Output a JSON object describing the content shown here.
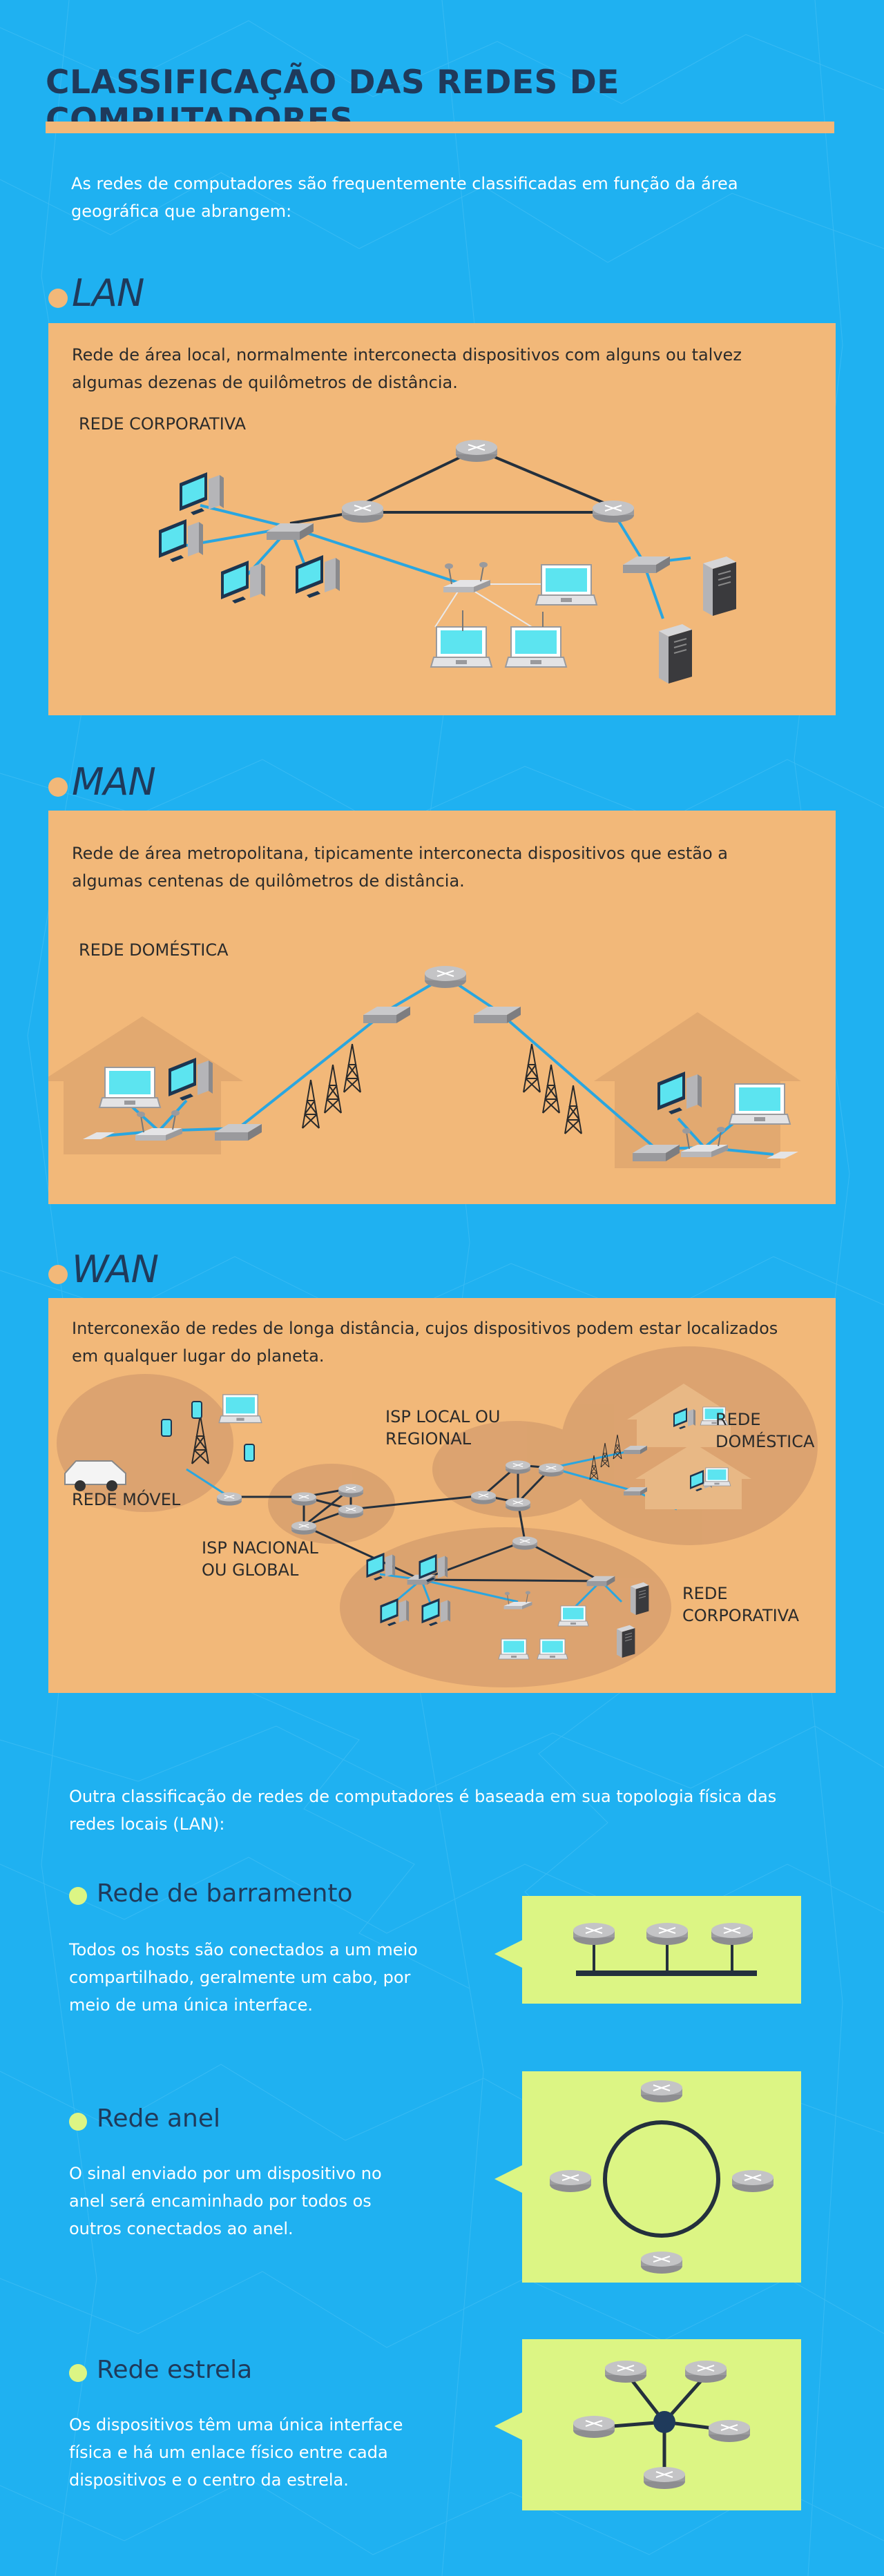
{
  "header": {
    "title": "CLASSIFICAÇÃO DAS REDES DE COMPUTADORES",
    "intro_line1": "As redes de computadores são frequentemente classificadas em função da área",
    "intro_line2": "geográfica que abrangem:"
  },
  "sections": {
    "lan": {
      "heading": "LAN",
      "text_line1": "Rede de área local, normalmente interconecta dispositivos com alguns ou talvez",
      "text_line2": "algumas dezenas de quilômetros de distância.",
      "diagram_label": "REDE CORPORATIVA"
    },
    "man": {
      "heading": "MAN",
      "text_line1": "Rede de área metropolitana, tipicamente interconecta dispositivos que estão a",
      "text_line2": "algumas centenas de quilômetros de distância.",
      "diagram_label": "REDE DOMÉSTICA"
    },
    "wan": {
      "heading": "WAN",
      "text_line1": "Interconexão de redes de longa distância, cujos dispositivos podem estar localizados",
      "text_line2": "em qualquer lugar do planeta.",
      "label_mobile": "REDE MÓVEL",
      "label_isp_national_1": "ISP NACIONAL",
      "label_isp_national_2": "OU GLOBAL",
      "label_isp_local_1": "ISP LOCAL OU",
      "label_isp_local_2": "REGIONAL",
      "label_home_1": "REDE",
      "label_home_2": "DOMÉSTICA",
      "label_corp_1": "REDE",
      "label_corp_2": "CORPORATIVA"
    }
  },
  "topology": {
    "intro_line1": "Outra classificação de redes de computadores é baseada em sua topologia física das",
    "intro_line2": "redes locais (LAN):",
    "bus": {
      "heading": "Rede de barramento",
      "line1": "Todos os hosts são conectados a um meio",
      "line2": "compartilhado, geralmente um cabo, por",
      "line3": "meio de uma única interface."
    },
    "ring": {
      "heading": "Rede anel",
      "line1": "O sinal enviado por um dispositivo no",
      "line2": "anel será encaminhado por todos os",
      "line3": "outros conectados ao anel."
    },
    "star": {
      "heading": "Rede estrela",
      "line1": "Os dispositivos têm uma única interface",
      "line2": "física e há um enlace físico entre cada",
      "line3": "dispositivos e o centro da estrela."
    }
  },
  "colors": {
    "background": "#1fb1f1",
    "accent_orange": "#f2b879",
    "title_navy": "#1f3a5b",
    "topology_green": "#dcf584",
    "link_blue": "#2aa6e0",
    "device_gray": "#a9a9ab",
    "screen_cyan": "#5ce4f0"
  },
  "icons": [
    "router-icon",
    "desktop-computer-icon",
    "laptop-icon",
    "server-icon",
    "wifi-access-point-icon",
    "switch-icon",
    "antenna-tower-icon",
    "smartphone-icon",
    "car-icon",
    "house-icon"
  ]
}
